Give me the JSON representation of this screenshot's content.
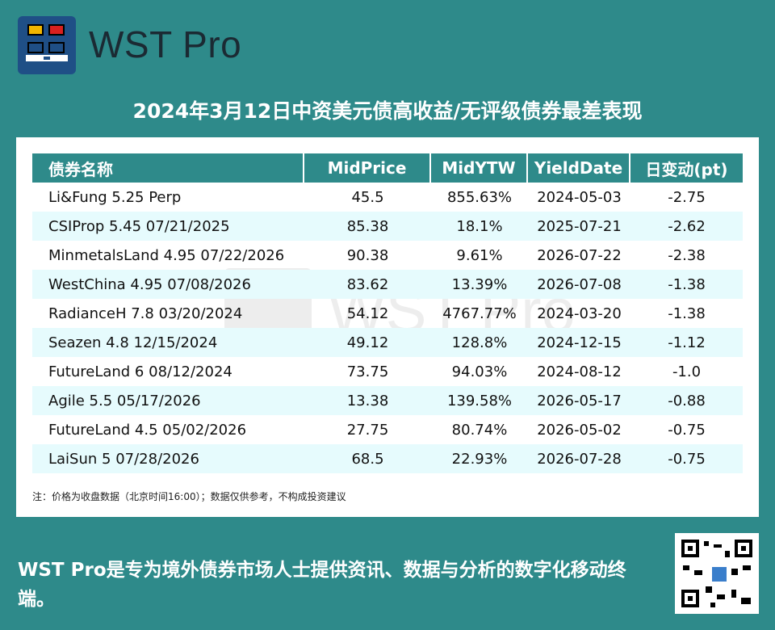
{
  "brand": {
    "name": "WST Pro"
  },
  "title": "2024年3月12日中资美元债高收益/无评级债券最差表现",
  "table": {
    "headers": [
      "债券名称",
      "MidPrice",
      "MidYTW",
      "YieldDate",
      "日变动(pt)"
    ],
    "rows": [
      [
        "Li&Fung 5.25 Perp",
        "45.5",
        "855.63%",
        "2024-05-03",
        "-2.75"
      ],
      [
        "CSIProp 5.45 07/21/2025",
        "85.38",
        "18.1%",
        "2025-07-21",
        "-2.62"
      ],
      [
        "MinmetalsLand 4.95 07/22/2026",
        "90.38",
        "9.61%",
        "2026-07-22",
        "-2.38"
      ],
      [
        "WestChina 4.95 07/08/2026",
        "83.62",
        "13.39%",
        "2026-07-08",
        "-1.38"
      ],
      [
        "RadianceH 7.8 03/20/2024",
        "54.12",
        "4767.77%",
        "2024-03-20",
        "-1.38"
      ],
      [
        "Seazen 4.8 12/15/2024",
        "49.12",
        "128.8%",
        "2024-12-15",
        "-1.12"
      ],
      [
        "FutureLand 6 08/12/2024",
        "73.75",
        "94.03%",
        "2024-08-12",
        "-1.0"
      ],
      [
        "Agile 5.5 05/17/2026",
        "13.38",
        "139.58%",
        "2026-05-17",
        "-0.88"
      ],
      [
        "FutureLand 4.5 05/02/2026",
        "27.75",
        "80.74%",
        "2026-05-02",
        "-0.75"
      ],
      [
        "LaiSun 5 07/28/2026",
        "68.5",
        "22.93%",
        "2026-07-28",
        "-0.75"
      ]
    ]
  },
  "note": "注：价格为收盘数据（北京时间16:00）；数据仅供参考，不构成投资建议",
  "footer": "WST Pro是专为境外债券市场人士提供资讯、数据与分析的数字化移动终端。",
  "colors": {
    "background": "#2e8a8a",
    "header": "#2e8a8a",
    "stripe": "#e6fbfd",
    "logo": "#1f4f86"
  },
  "icons": {
    "logo": "wst-logo-icon",
    "qr": "qr-code-icon"
  }
}
